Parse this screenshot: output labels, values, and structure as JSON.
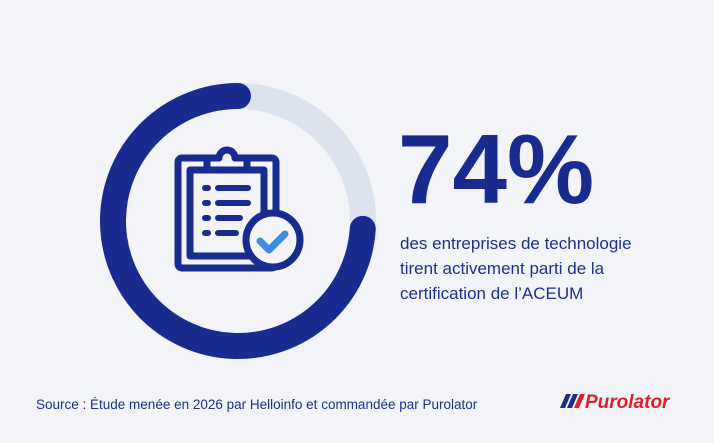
{
  "chart_data": {
    "type": "donut",
    "values": [
      74
    ],
    "value_labels": [
      "74%"
    ],
    "color": "#1a2b8f",
    "track_color": "#dde3ec",
    "description": [
      "des entreprises de technologie",
      "tirent activement parti de la",
      "certification de l’ACEUM"
    ],
    "source": "Source : Étude menée en 2026 par Helloinfo et commandée par Purolator",
    "brand": "Purolator"
  }
}
